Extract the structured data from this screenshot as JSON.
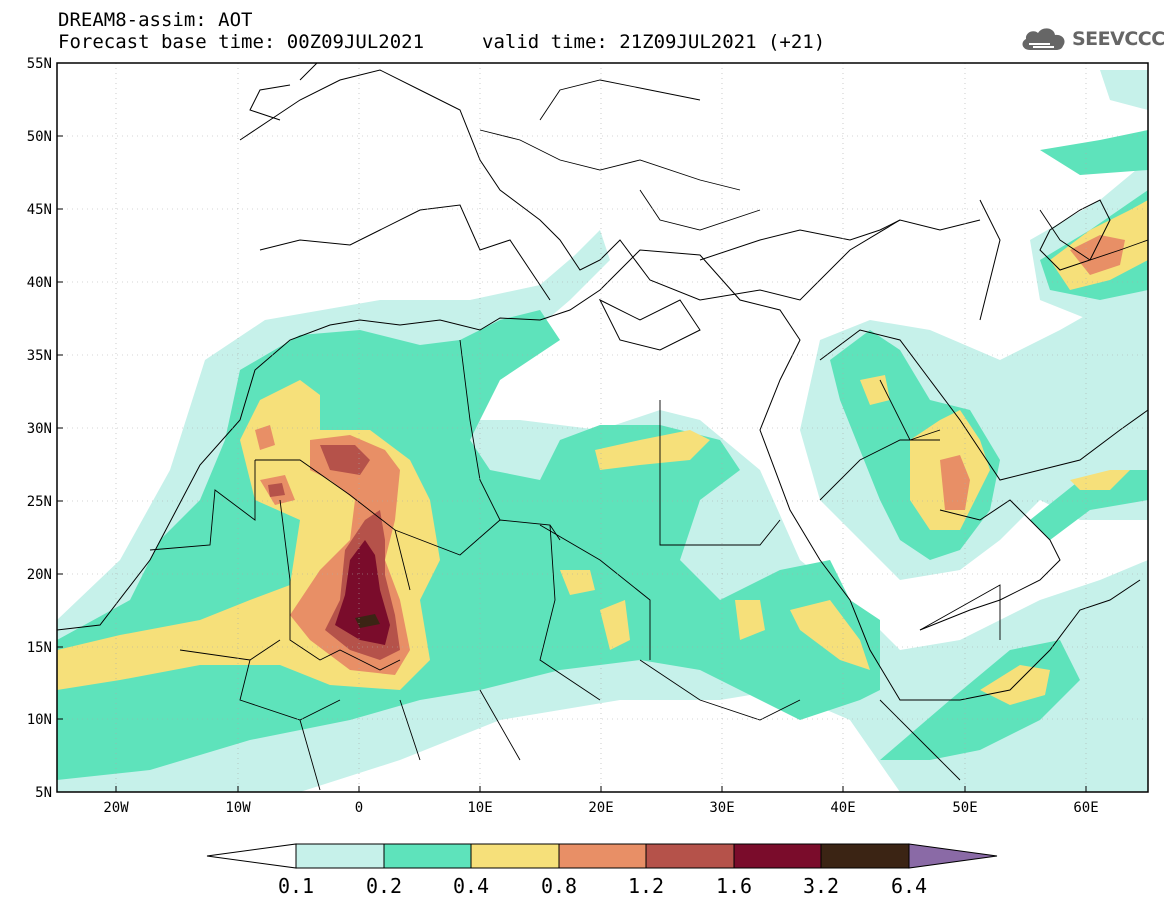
{
  "title": {
    "line1": "DREAM8-assim: AOT",
    "base_time": "Forecast base time: 00Z09JUL2021",
    "valid_time": "valid time: 21Z09JUL2021 (+21)"
  },
  "logo": {
    "text": "SEEVCCC",
    "icon": "cloud-icon"
  },
  "map": {
    "lat_labels": [
      "55N",
      "50N",
      "45N",
      "40N",
      "35N",
      "30N",
      "25N",
      "20N",
      "15N",
      "10N",
      "5N"
    ],
    "lon_labels": [
      "20W",
      "10W",
      "0",
      "10E",
      "20E",
      "30E",
      "40E",
      "50E",
      "60E"
    ],
    "lat_range": [
      5,
      55
    ],
    "lon_range": [
      -25,
      65
    ]
  },
  "colorbar": {
    "ticks": [
      "0.1",
      "0.2",
      "0.4",
      "0.8",
      "1.2",
      "1.6",
      "3.2",
      "6.4"
    ],
    "colors": [
      "#ffffff",
      "#c6f1ea",
      "#5ee3bb",
      "#f6e07a",
      "#e88f66",
      "#b5524a",
      "#7a0c2b",
      "#3b2414",
      "#8a6aa6"
    ]
  },
  "colors": {
    "aot_0_1": "#c6f1ea",
    "aot_0_2": "#5ee3bb",
    "aot_0_4": "#f6e07a",
    "aot_0_8": "#e88f66",
    "aot_1_2": "#b5524a",
    "aot_1_6": "#7a0c2b",
    "aot_3_2": "#3b2414"
  }
}
